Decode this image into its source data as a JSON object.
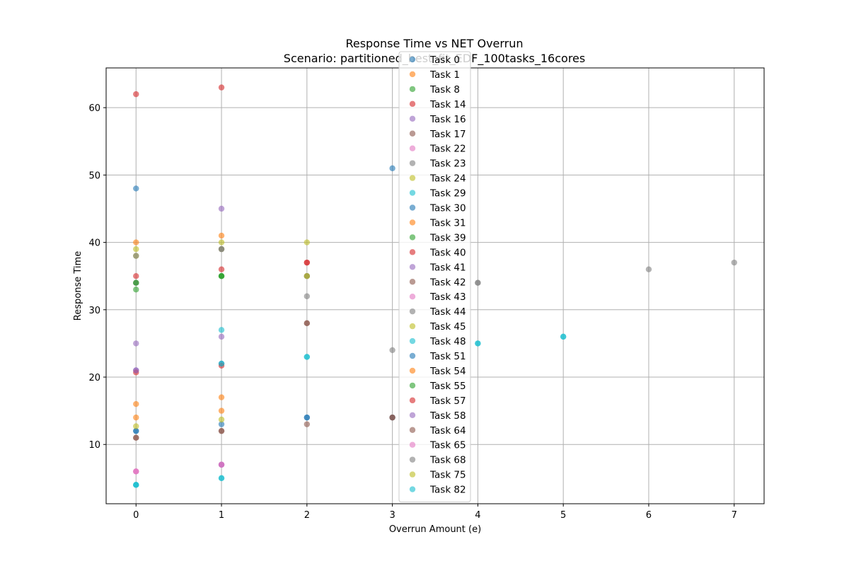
{
  "chart_data": {
    "type": "scatter",
    "title": "Response Time vs NET Overrun",
    "subtitle": "Scenario: partitioned_best_fit_EDF_100tasks_16cores",
    "xlabel": "Overrun Amount (e)",
    "ylabel": "Response Time",
    "xlim": [
      -0.35,
      7.35
    ],
    "ylim": [
      1.2,
      65.9
    ],
    "xticks": [
      0,
      1,
      2,
      3,
      4,
      5,
      6,
      7
    ],
    "yticks": [
      10,
      20,
      30,
      40,
      50,
      60
    ],
    "grid": true,
    "legend_position": "top-center",
    "series": [
      {
        "name": "Task 0",
        "color": "#1f77b4",
        "points": [
          [
            0,
            48
          ],
          [
            3,
            51
          ]
        ]
      },
      {
        "name": "Task 1",
        "color": "#ff7f0e",
        "points": [
          [
            0,
            40
          ],
          [
            1,
            41
          ]
        ]
      },
      {
        "name": "Task 8",
        "color": "#2ca02c",
        "points": [
          [
            0,
            33
          ],
          [
            1,
            35
          ]
        ]
      },
      {
        "name": "Task 14",
        "color": "#d62728",
        "points": [
          [
            0,
            62
          ],
          [
            1,
            63
          ]
        ]
      },
      {
        "name": "Task 16",
        "color": "#9467bd",
        "points": [
          [
            0,
            25
          ],
          [
            1,
            26
          ]
        ]
      },
      {
        "name": "Task 17",
        "color": "#8c564b",
        "points": [
          [
            0,
            11
          ],
          [
            1,
            12
          ],
          [
            2,
            13
          ]
        ]
      },
      {
        "name": "Task 22",
        "color": "#e377c2",
        "points": [
          [
            0,
            6
          ],
          [
            1,
            7
          ]
        ]
      },
      {
        "name": "Task 23",
        "color": "#7f7f7f",
        "points": [
          [
            2,
            32
          ],
          [
            3,
            24
          ],
          [
            6,
            36
          ],
          [
            7,
            37
          ]
        ]
      },
      {
        "name": "Task 24",
        "color": "#bcbd22",
        "points": [
          [
            0,
            38
          ],
          [
            1,
            39
          ],
          [
            2,
            35
          ]
        ]
      },
      {
        "name": "Task 29",
        "color": "#17becf",
        "points": [
          [
            0,
            4
          ],
          [
            1,
            5
          ]
        ]
      },
      {
        "name": "Task 30",
        "color": "#1f77b4",
        "points": [
          [
            0,
            12
          ],
          [
            1,
            13
          ],
          [
            2,
            14
          ],
          [
            3,
            14
          ]
        ]
      },
      {
        "name": "Task 31",
        "color": "#ff7f0e",
        "points": [
          [
            0,
            14
          ],
          [
            1,
            15
          ]
        ]
      },
      {
        "name": "Task 39",
        "color": "#2ca02c",
        "points": [
          [
            0,
            34
          ],
          [
            1,
            35
          ]
        ]
      },
      {
        "name": "Task 40",
        "color": "#d62728",
        "points": [
          [
            0,
            35
          ],
          [
            1,
            36
          ],
          [
            2,
            37
          ]
        ]
      },
      {
        "name": "Task 41",
        "color": "#9467bd",
        "points": [
          [
            0,
            21
          ],
          [
            1,
            45
          ]
        ]
      },
      {
        "name": "Task 42",
        "color": "#8c564b",
        "points": [
          [
            2,
            28
          ],
          [
            3,
            14
          ]
        ]
      },
      {
        "name": "Task 43",
        "color": "#e377c2",
        "points": [
          [
            0,
            6
          ],
          [
            1,
            7
          ]
        ]
      },
      {
        "name": "Task 44",
        "color": "#7f7f7f",
        "points": [
          [
            0,
            34
          ],
          [
            1,
            39
          ],
          [
            2,
            35
          ],
          [
            4,
            34
          ]
        ]
      },
      {
        "name": "Task 45",
        "color": "#bcbd22",
        "points": [
          [
            0,
            39
          ],
          [
            1,
            40
          ],
          [
            2,
            40
          ]
        ]
      },
      {
        "name": "Task 48",
        "color": "#17becf",
        "points": [
          [
            0,
            4
          ],
          [
            1,
            27
          ],
          [
            2,
            23
          ],
          [
            4,
            25
          ],
          [
            5,
            26
          ]
        ]
      },
      {
        "name": "Task 51",
        "color": "#1f77b4",
        "points": [
          [
            0,
            12
          ],
          [
            1,
            22
          ],
          [
            2,
            14
          ]
        ]
      },
      {
        "name": "Task 54",
        "color": "#ff7f0e",
        "points": [
          [
            0,
            16
          ],
          [
            1,
            17
          ]
        ]
      },
      {
        "name": "Task 55",
        "color": "#2ca02c",
        "points": [
          [
            0,
            34
          ],
          [
            1,
            35
          ]
        ]
      },
      {
        "name": "Task 57",
        "color": "#d62728",
        "points": [
          [
            0,
            20.7
          ],
          [
            1,
            21.7
          ],
          [
            2,
            37
          ]
        ]
      },
      {
        "name": "Task 58",
        "color": "#9467bd",
        "points": [
          [
            0,
            21
          ],
          [
            1,
            7
          ]
        ]
      },
      {
        "name": "Task 64",
        "color": "#8c564b",
        "points": [
          [
            0,
            11
          ],
          [
            1,
            12
          ],
          [
            2,
            28
          ],
          [
            3,
            14
          ]
        ]
      },
      {
        "name": "Task 65",
        "color": "#e377c2",
        "points": [
          [
            0,
            6
          ],
          [
            1,
            7
          ]
        ]
      },
      {
        "name": "Task 68",
        "color": "#7f7f7f",
        "points": [
          [
            0,
            38
          ],
          [
            1,
            39
          ],
          [
            2,
            35
          ],
          [
            4,
            34
          ]
        ]
      },
      {
        "name": "Task 75",
        "color": "#bcbd22",
        "points": [
          [
            0,
            12.7
          ],
          [
            1,
            13.7
          ],
          [
            2,
            35
          ]
        ]
      },
      {
        "name": "Task 82",
        "color": "#17becf",
        "points": [
          [
            0,
            4
          ],
          [
            1,
            5
          ],
          [
            1,
            22
          ],
          [
            2,
            23
          ],
          [
            4,
            25
          ],
          [
            5,
            26
          ]
        ]
      }
    ]
  }
}
